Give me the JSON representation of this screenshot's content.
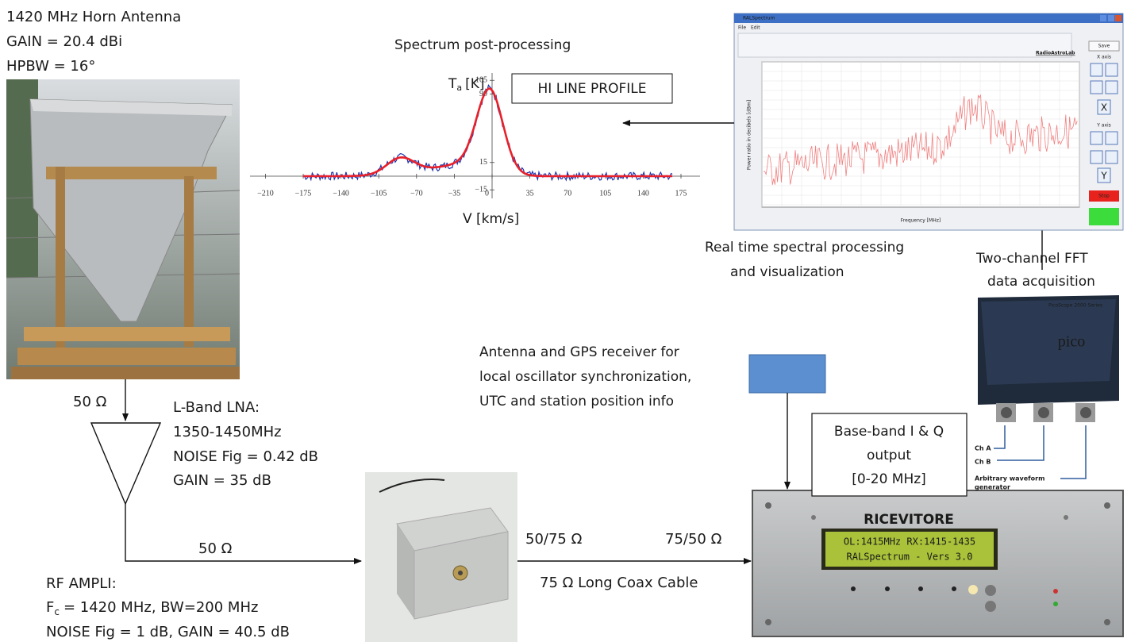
{
  "antenna": {
    "lines": [
      "1420 MHz Horn Antenna",
      "GAIN = 20.4 dBi",
      "HPBW = 16°"
    ]
  },
  "spectrum": {
    "title": "Spectrum post-processing",
    "y_label": {
      "symbol": "T",
      "subscript": "a",
      "unit": "[K]"
    },
    "box": "HI LINE PROFILE",
    "x_label": "V [km/s]",
    "xticks": [
      {
        "value": -210,
        "label": "−210"
      },
      {
        "value": -175,
        "label": "−175"
      },
      {
        "value": -140,
        "label": "−140"
      },
      {
        "value": -105,
        "label": "−105"
      },
      {
        "value": -70,
        "label": "−70"
      },
      {
        "value": -35,
        "label": "−35"
      },
      0,
      35,
      70,
      105,
      140,
      175
    ],
    "yticks": [
      105,
      90,
      15,
      {
        "value": -15,
        "label": "−15"
      }
    ]
  },
  "software": {
    "window_title": "RALSpectrum",
    "menu": [
      "File",
      "Edit"
    ],
    "brand": "RadioAstroLab",
    "y_axis_label": "Power ratio in decibels [dBm]",
    "x_axis_label": "Frequency [MHz]",
    "buttons": [
      "Save",
      "X axis",
      "X",
      "Y axis",
      "Y",
      "Stop"
    ],
    "caption": [
      "Real time spectral processing",
      "and visualization"
    ]
  },
  "acquisition": {
    "caption": [
      "Two-channel FFT",
      "data acquisition"
    ],
    "device_series": "PicoScope 2000 Series",
    "brand": "pico",
    "labels": [
      "Ch A",
      "Ch B",
      "Arbitrary waveform",
      "generator"
    ]
  },
  "gps": {
    "lines": [
      "Antenna and GPS receiver for",
      "local oscillator synchronization,",
      "UTC and station position info"
    ]
  },
  "lna": {
    "impedance": "50 Ω",
    "lines": [
      "L-Band LNA:",
      "1350-1450MHz",
      "NOISE Fig = 0.42 dB",
      "GAIN = 35 dB"
    ]
  },
  "rf_ampli": {
    "impedance": "50 Ω",
    "title": "RF AMPLI:",
    "fc": {
      "symbol": "F",
      "subscript": "c",
      "rest": "= 1420 MHz, BW=200 MHz"
    },
    "noise": "NOISE Fig = 1 dB, GAIN = 40.5 dB"
  },
  "cable": {
    "left": "50/75 Ω",
    "right": "75/50 Ω",
    "label": "75 Ω Long Coax Cable"
  },
  "baseband": {
    "lines": [
      "Base-band I & Q",
      "output",
      "[0-20 MHz]"
    ]
  },
  "receiver": {
    "name": "RICEVITORE",
    "display": [
      "OL:1415MHz RX:1415-1435",
      "RALSpectrum - Vers 3.0"
    ]
  }
}
